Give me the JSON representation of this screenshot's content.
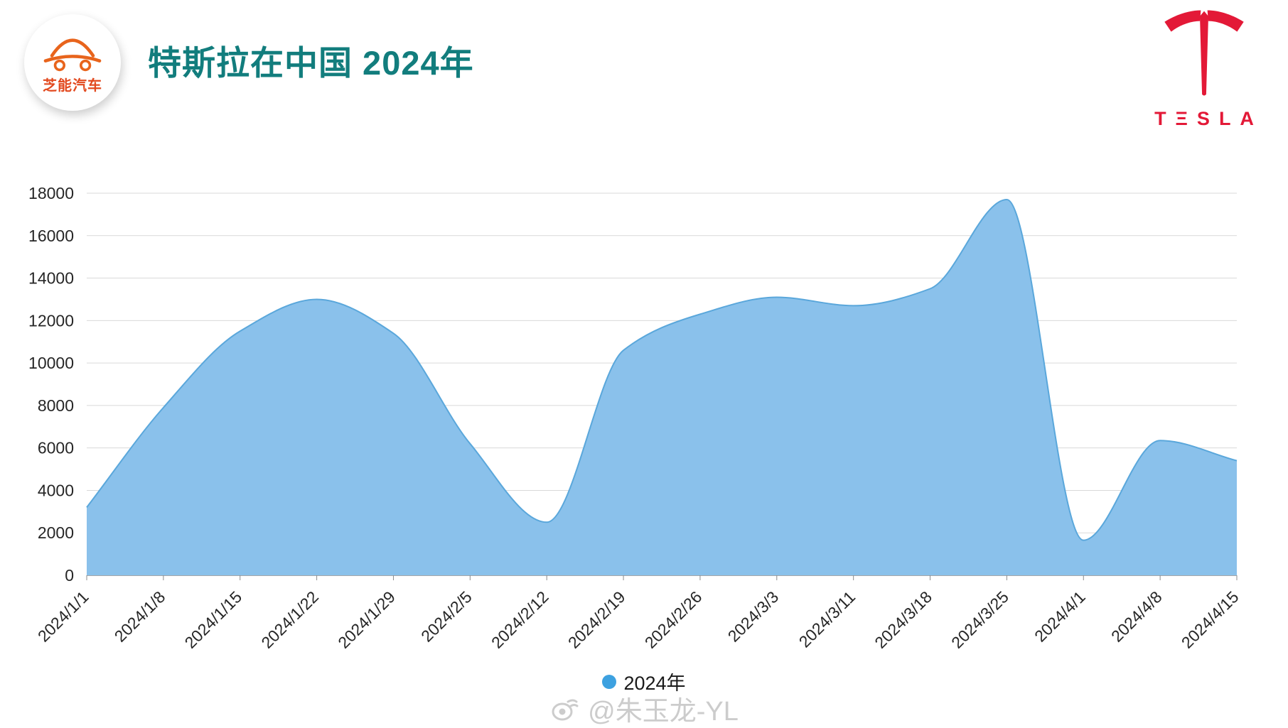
{
  "header": {
    "title": "特斯拉在中国 2024年",
    "brand_name": "芝能汽车",
    "tesla_wordmark": "TΞSLA"
  },
  "colors": {
    "title": "#127d7d",
    "brand_orange": "#e8641c",
    "brand_text": "#e2491f",
    "tesla_red": "#e31937",
    "watermark": "#cccccc",
    "legend_dot": "#3da1e0"
  },
  "legend": {
    "label": "2024年"
  },
  "watermark": {
    "text": "@朱玉龙-YL"
  },
  "chart_data": {
    "type": "area",
    "title": "特斯拉在中国 2024年",
    "xlabel": "",
    "ylabel": "",
    "categories": [
      "2024/1/1",
      "2024/1/8",
      "2024/1/15",
      "2024/1/22",
      "2024/1/29",
      "2024/2/5",
      "2024/2/12",
      "2024/2/19",
      "2024/2/26",
      "2024/3/3",
      "2024/3/11",
      "2024/3/18",
      "2024/3/25",
      "2024/4/1",
      "2024/4/8",
      "2024/4/15"
    ],
    "series": [
      {
        "name": "2024年",
        "values": [
          3200,
          7900,
          11500,
          13000,
          11400,
          6200,
          2500,
          10600,
          12300,
          13100,
          12700,
          13500,
          17700,
          1650,
          6350,
          5400
        ]
      }
    ],
    "ylim": [
      0,
      18000
    ],
    "yticks": [
      0,
      2000,
      4000,
      6000,
      8000,
      10000,
      12000,
      14000,
      16000,
      18000
    ],
    "grid": true,
    "smooth": true,
    "legend_position": "bottom",
    "colors": {
      "fill": "#8ac1eb",
      "stroke": "#5aa7db",
      "gridline": "#d9d9d9",
      "axis": "#8c8c8c",
      "tick_text": "#262626"
    }
  }
}
